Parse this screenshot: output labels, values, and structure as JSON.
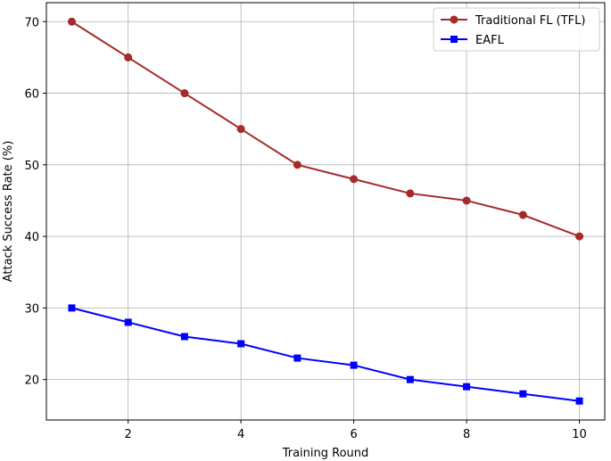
{
  "chart_data": {
    "type": "line",
    "title": "",
    "xlabel": "Training Round",
    "ylabel": "Attack Success Rate (%)",
    "x": [
      1,
      2,
      3,
      4,
      5,
      6,
      7,
      8,
      9,
      10
    ],
    "xlim": [
      0.55,
      10.45
    ],
    "ylim": [
      14.35,
      72.65
    ],
    "xticks": [
      2,
      4,
      6,
      8,
      10
    ],
    "yticks": [
      20,
      30,
      40,
      50,
      60,
      70
    ],
    "grid": true,
    "legend_position": "top-right",
    "series": [
      {
        "name": "Traditional FL (TFL)",
        "values": [
          70,
          65,
          60,
          55,
          50,
          48,
          46,
          45,
          43,
          40
        ],
        "color": "#a52a2a",
        "marker": "circle"
      },
      {
        "name": "EAFL",
        "values": [
          30,
          28,
          26,
          25,
          23,
          22,
          20,
          19,
          18,
          17
        ],
        "color": "#0000ff",
        "marker": "square"
      }
    ]
  }
}
